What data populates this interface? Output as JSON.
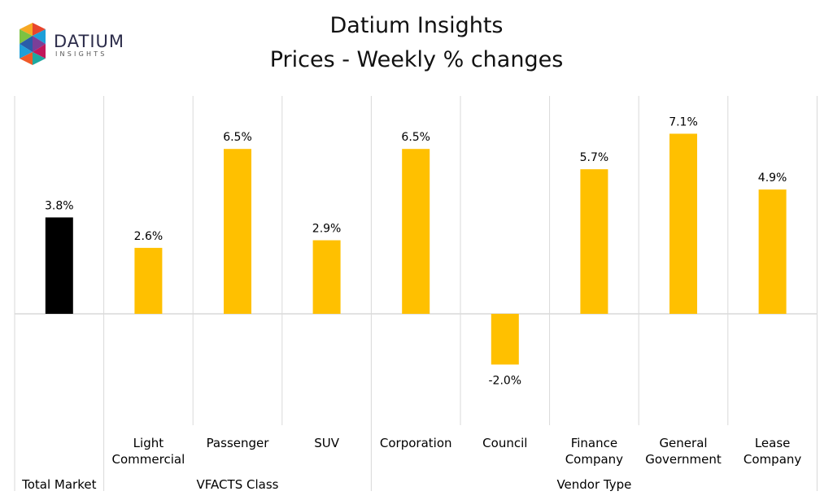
{
  "title": "Datium Insights",
  "subtitle": "Prices - Weekly % changes",
  "logo": {
    "word": "DATIUM",
    "sub": "INSIGHTS"
  },
  "colors": {
    "highlight": "#000000",
    "bar": "#FFC000",
    "grid": "#D9D9D9",
    "text": "#000000"
  },
  "chart_data": {
    "type": "bar",
    "title": "Datium Insights",
    "subtitle": "Prices - Weekly % changes",
    "categories": [
      "Total Market",
      "Light Commercial",
      "Passenger",
      "SUV",
      "Corporation",
      "Council",
      "Finance Company",
      "General Government",
      "Lease Company"
    ],
    "category_lines": [
      [
        "Total Market"
      ],
      [
        "Light",
        "Commercial"
      ],
      [
        "Passenger"
      ],
      [
        "SUV"
      ],
      [
        "Corporation"
      ],
      [
        "Council"
      ],
      [
        "Finance",
        "Company"
      ],
      [
        "General",
        "Government"
      ],
      [
        "Lease",
        "Company"
      ]
    ],
    "groups": [
      {
        "label": "",
        "members": [
          "Total Market"
        ]
      },
      {
        "label": "VFACTS Class",
        "members": [
          "Light Commercial",
          "Passenger",
          "SUV"
        ]
      },
      {
        "label": "Vendor Type",
        "members": [
          "Corporation",
          "Council",
          "Finance Company",
          "General Government",
          "Lease Company"
        ]
      }
    ],
    "values": [
      3.8,
      2.6,
      6.5,
      2.9,
      6.5,
      -2.0,
      5.7,
      7.1,
      4.9
    ],
    "data_labels": [
      "3.8%",
      "2.6%",
      "6.5%",
      "2.9%",
      "6.5%",
      "-2.0%",
      "5.7%",
      "7.1%",
      "4.9%"
    ],
    "highlight_index": 0,
    "ylim": [
      -8,
      8
    ],
    "unit": "%",
    "grid": false
  }
}
